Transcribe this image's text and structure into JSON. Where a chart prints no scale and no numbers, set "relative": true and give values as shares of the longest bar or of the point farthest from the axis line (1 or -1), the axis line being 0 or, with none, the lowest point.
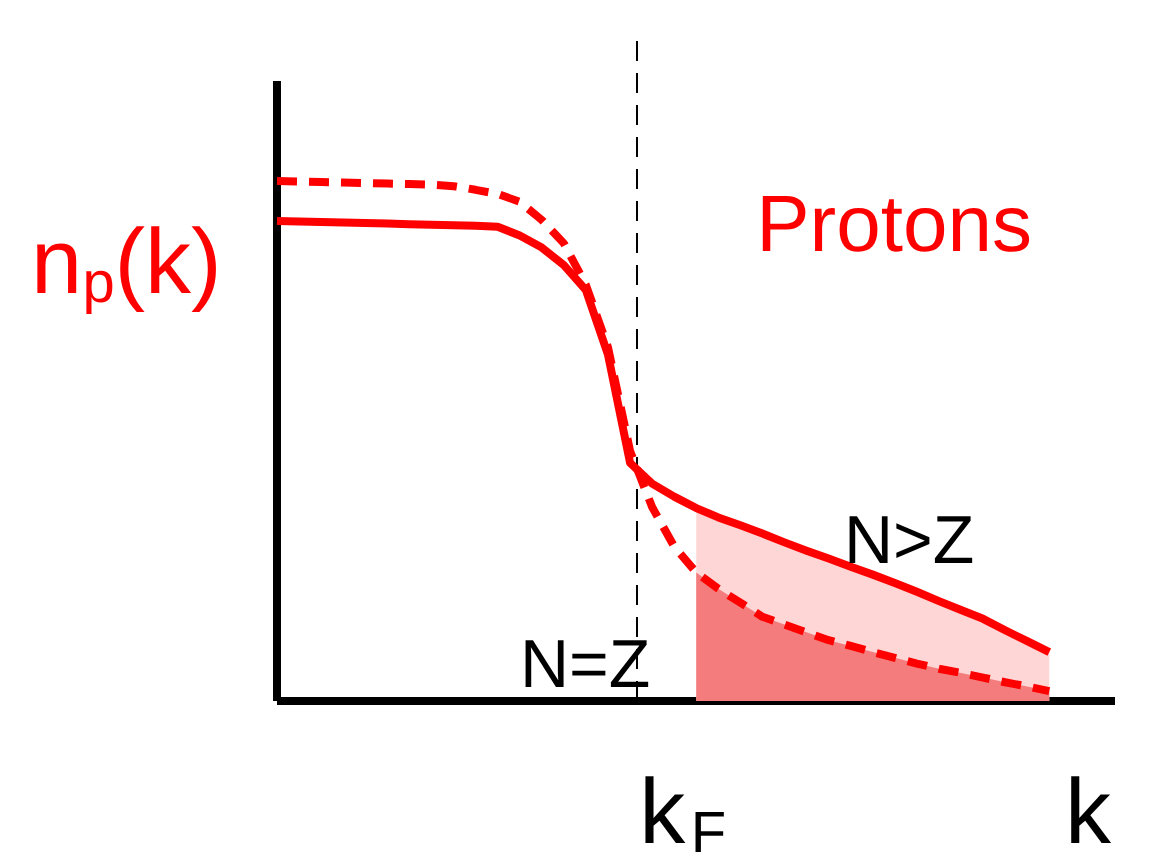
{
  "chart_data": {
    "type": "line",
    "relative": true,
    "xlabel": "k",
    "ylabel": "n$_{p}$(k)",
    "categories": [
      null,
      null,
      null,
      null,
      null,
      null,
      null,
      null,
      null,
      null,
      null,
      null,
      null,
      null,
      null,
      null,
      null,
      null,
      null,
      null,
      null,
      null,
      null,
      null,
      null,
      null,
      null,
      null,
      null,
      null,
      null,
      null,
      null,
      null,
      null,
      null
    ],
    "annotations": [
      "Protons",
      "N>Z",
      "N=Z",
      "k$_{F}$"
    ],
    "series": [
      {
        "type": "area",
        "color": "#ffd6d6",
        "values": [
          null,
          null,
          null,
          null,
          null,
          null,
          null,
          null,
          null,
          null,
          null,
          null,
          null,
          null,
          null,
          null,
          null,
          null,
          null,
          0.371,
          0.353,
          0.338,
          0.322,
          0.305,
          0.289,
          0.274,
          0.258,
          0.243,
          0.227,
          0.21,
          0.192,
          0.175,
          0.158,
          0.136,
          0.115,
          0.094
        ]
      },
      {
        "type": "area",
        "color": "#f47c7c",
        "values": [
          null,
          null,
          null,
          null,
          null,
          null,
          null,
          null,
          null,
          null,
          null,
          null,
          null,
          null,
          null,
          null,
          null,
          null,
          null,
          0.247,
          0.216,
          0.189,
          0.162,
          0.147,
          0.132,
          0.117,
          0.106,
          0.094,
          0.083,
          0.072,
          0.062,
          0.054,
          0.045,
          0.036,
          0.028,
          0.019
        ]
      },
      {
        "color": "#ff0000",
        "line_style": "solid",
        "values": [
          0.923,
          0.922,
          0.921,
          0.92,
          0.919,
          0.918,
          0.917,
          0.916,
          0.915,
          0.914,
          0.912,
          0.895,
          0.872,
          0.838,
          0.79,
          0.666,
          0.458,
          0.418,
          0.393,
          0.371,
          0.353,
          0.338,
          0.322,
          0.305,
          0.289,
          0.274,
          0.258,
          0.243,
          0.227,
          0.21,
          0.192,
          0.175,
          0.158,
          0.136,
          0.115,
          0.094
        ]
      },
      {
        "color": "#ff0000",
        "line_style": "dashed",
        "values": [
          1,
          0.999,
          0.998,
          0.997,
          0.996,
          0.995,
          0.994,
          0.993,
          0.99,
          0.983,
          0.975,
          0.96,
          0.925,
          0.88,
          0.8,
          0.68,
          0.481,
          0.373,
          0.297,
          0.247,
          0.216,
          0.189,
          0.162,
          0.147,
          0.132,
          0.117,
          0.106,
          0.094,
          0.083,
          0.072,
          0.062,
          0.054,
          0.045,
          0.036,
          0.028,
          0.019
        ]
      }
    ]
  }
}
